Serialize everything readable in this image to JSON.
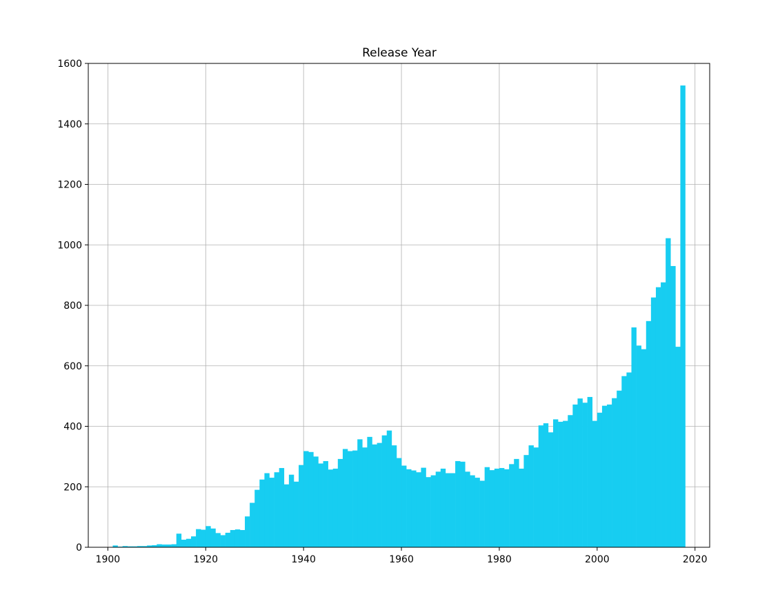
{
  "chart_data": {
    "type": "bar",
    "title": "Release Year",
    "xlabel": "",
    "ylabel": "",
    "xlim": [
      1896,
      2023
    ],
    "ylim": [
      0,
      1600
    ],
    "x_ticks": [
      1900,
      1920,
      1940,
      1960,
      1980,
      2000,
      2020
    ],
    "y_ticks": [
      0,
      200,
      400,
      600,
      800,
      1000,
      1200,
      1400,
      1600
    ],
    "grid": true,
    "bar_color": "#17cdf1",
    "bin_start": 1900,
    "bin_width": 1,
    "values": [
      0,
      6,
      2,
      4,
      3,
      3,
      4,
      4,
      6,
      7,
      10,
      9,
      9,
      10,
      45,
      25,
      28,
      36,
      60,
      58,
      70,
      62,
      47,
      40,
      48,
      57,
      59,
      57,
      102,
      147,
      190,
      224,
      245,
      230,
      248,
      262,
      208,
      240,
      217,
      272,
      318,
      315,
      300,
      277,
      285,
      257,
      260,
      292,
      325,
      318,
      320,
      357,
      330,
      365,
      340,
      345,
      370,
      386,
      337,
      295,
      270,
      258,
      254,
      248,
      263,
      232,
      238,
      250,
      260,
      245,
      245,
      285,
      283,
      250,
      238,
      230,
      220,
      265,
      255,
      260,
      262,
      258,
      275,
      292,
      260,
      305,
      337,
      330,
      403,
      410,
      380,
      423,
      415,
      418,
      437,
      472,
      492,
      478,
      497,
      418,
      445,
      468,
      472,
      493,
      518,
      566,
      578,
      727,
      667,
      655,
      748,
      826,
      860,
      876,
      1022,
      930,
      663,
      1527,
      0
    ]
  }
}
